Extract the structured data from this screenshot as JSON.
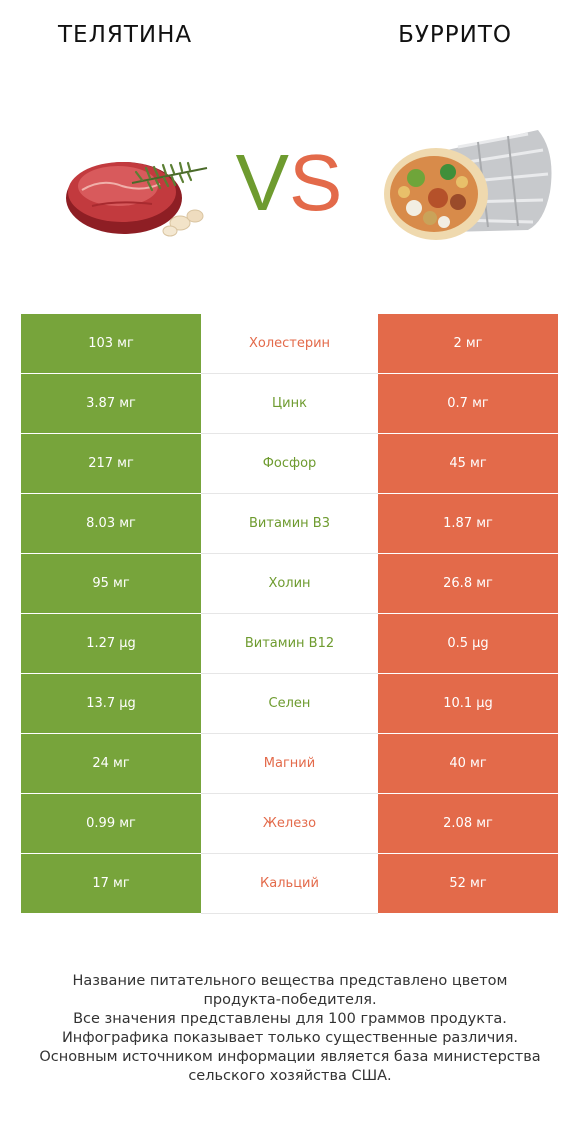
{
  "header": {
    "left_title": "ТЕЛЯТИНА",
    "right_title": "БУРРИТО",
    "vs_v": "V",
    "vs_s": "S"
  },
  "colors": {
    "left_winner": "#77a43b",
    "right_winner": "#e36a4a"
  },
  "rows": [
    {
      "left": "103 мг",
      "name": "Холестерин",
      "right": "2 мг",
      "winner": "right"
    },
    {
      "left": "3.87 мг",
      "name": "Цинк",
      "right": "0.7 мг",
      "winner": "left"
    },
    {
      "left": "217 мг",
      "name": "Фосфор",
      "right": "45 мг",
      "winner": "left"
    },
    {
      "left": "8.03 мг",
      "name": "Витамин B3",
      "right": "1.87 мг",
      "winner": "left"
    },
    {
      "left": "95 мг",
      "name": "Холин",
      "right": "26.8 мг",
      "winner": "left"
    },
    {
      "left": "1.27 µg",
      "name": "Витамин B12",
      "right": "0.5 µg",
      "winner": "left"
    },
    {
      "left": "13.7 µg",
      "name": "Селен",
      "right": "10.1 µg",
      "winner": "left"
    },
    {
      "left": "24 мг",
      "name": "Магний",
      "right": "40 мг",
      "winner": "right"
    },
    {
      "left": "0.99 мг",
      "name": "Железо",
      "right": "2.08 мг",
      "winner": "right"
    },
    {
      "left": "17 мг",
      "name": "Кальций",
      "right": "52 мг",
      "winner": "right"
    }
  ],
  "footnote": [
    "Название питательного вещества представлено цветом",
    "продукта-победителя.",
    "Все значения представлены для 100 граммов продукта.",
    "Инфографика показывает только существенные различия.",
    "Основным источником информации является база министерства",
    "сельского хозяйства США."
  ]
}
